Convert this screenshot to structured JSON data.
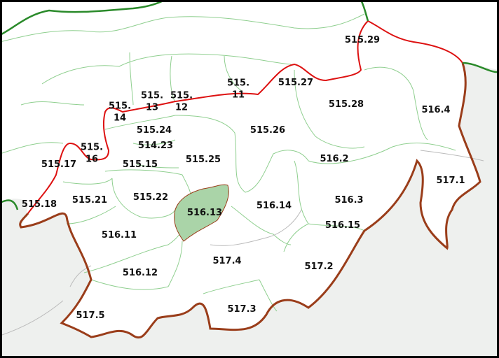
{
  "colors": {
    "outside": "#eef0ee",
    "land": "#ffffff",
    "internal_border": "#8fcf8f",
    "red_border": "#dd1111",
    "brown_border": "#9a3d1a",
    "green_border": "#2a8a2a",
    "highlight": "#aad4a8",
    "frame": "#000000"
  },
  "regions": [
    {
      "id": "515.29",
      "lines": [
        "515.29"
      ]
    },
    {
      "id": "515.27",
      "lines": [
        "515.27"
      ]
    },
    {
      "id": "515.28",
      "lines": [
        "515.28"
      ]
    },
    {
      "id": "516.4",
      "lines": [
        "516.4"
      ]
    },
    {
      "id": "515.11",
      "lines": [
        "515.",
        "11"
      ]
    },
    {
      "id": "515.13",
      "lines": [
        "515.",
        "13"
      ]
    },
    {
      "id": "515.12",
      "lines": [
        "515.",
        "12"
      ]
    },
    {
      "id": "515.14",
      "lines": [
        "515.",
        "14"
      ]
    },
    {
      "id": "515.26",
      "lines": [
        "515.26"
      ]
    },
    {
      "id": "515.24",
      "lines": [
        "515.24"
      ]
    },
    {
      "id": "514.23",
      "lines": [
        "514.23"
      ]
    },
    {
      "id": "515.17",
      "lines": [
        "515.17"
      ]
    },
    {
      "id": "515.16",
      "lines": [
        "515.",
        "16"
      ]
    },
    {
      "id": "515.15",
      "lines": [
        "515.15"
      ]
    },
    {
      "id": "515.25",
      "lines": [
        "515.25"
      ]
    },
    {
      "id": "516.2",
      "lines": [
        "516.2"
      ]
    },
    {
      "id": "517.1",
      "lines": [
        "517.1"
      ]
    },
    {
      "id": "515.18",
      "lines": [
        "515.18"
      ]
    },
    {
      "id": "515.21",
      "lines": [
        "515.21"
      ]
    },
    {
      "id": "515.22",
      "lines": [
        "515.22"
      ]
    },
    {
      "id": "516.13",
      "lines": [
        "516.13"
      ],
      "highlighted": true
    },
    {
      "id": "516.14",
      "lines": [
        "516.14"
      ]
    },
    {
      "id": "516.3",
      "lines": [
        "516.3"
      ]
    },
    {
      "id": "516.15",
      "lines": [
        "516.15"
      ]
    },
    {
      "id": "516.11",
      "lines": [
        "516.11"
      ]
    },
    {
      "id": "517.4",
      "lines": [
        "517.4"
      ]
    },
    {
      "id": "516.12",
      "lines": [
        "516.12"
      ]
    },
    {
      "id": "517.2",
      "lines": [
        "517.2"
      ]
    },
    {
      "id": "517.5",
      "lines": [
        "517.5"
      ]
    },
    {
      "id": "517.3",
      "lines": [
        "517.3"
      ]
    }
  ]
}
